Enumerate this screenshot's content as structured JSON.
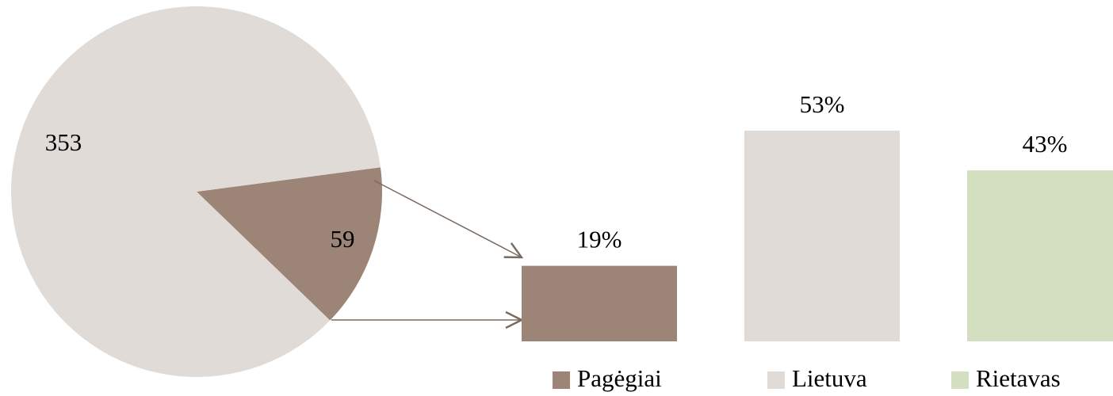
{
  "chart_data": [
    {
      "type": "pie",
      "values": [
        353,
        59
      ],
      "colors": [
        "#e0dbd7",
        "#9c8577"
      ]
    },
    {
      "type": "bar",
      "categories": [
        "Pagėgiai",
        "Lietuva",
        "Rietavas"
      ],
      "values": [
        19,
        53,
        43
      ],
      "value_labels": [
        "19%",
        "53%",
        "43%"
      ],
      "colors": [
        "#9c8577",
        "#e0dbd7",
        "#d3dfc0"
      ],
      "legend": "bottom"
    }
  ]
}
